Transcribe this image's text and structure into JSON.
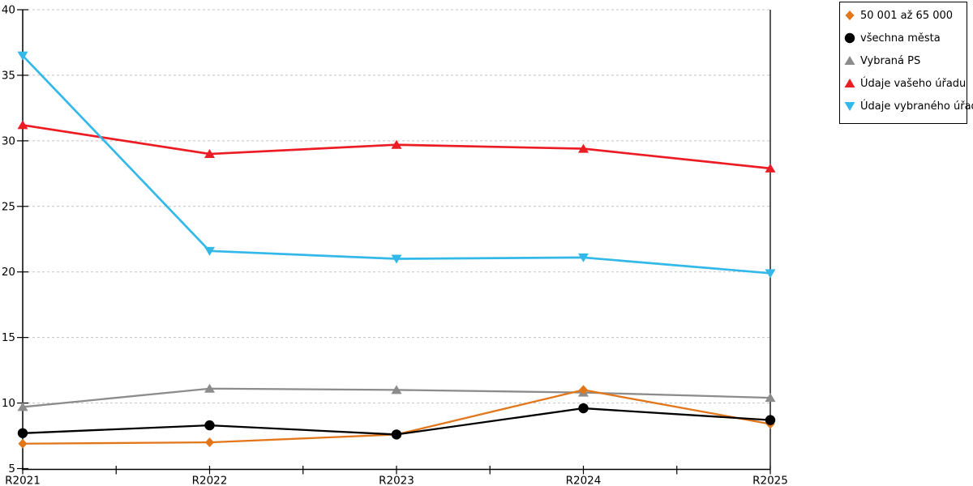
{
  "chart_data": {
    "type": "line",
    "title": "",
    "xlabel": "",
    "ylabel": "",
    "categories": [
      "R2021",
      "R2022",
      "R2023",
      "R2024",
      "R2025"
    ],
    "series": [
      {
        "name": "50 001 až 65 000",
        "marker": "diamond",
        "color": "#E2761B",
        "line_width": 2.3,
        "values": [
          6.9,
          7.0,
          7.6,
          11.0,
          8.4
        ]
      },
      {
        "name": "všechna města",
        "marker": "circle",
        "color": "#000000",
        "line_width": 2.3,
        "values": [
          7.7,
          8.3,
          7.6,
          9.6,
          8.7
        ]
      },
      {
        "name": "Vybraná PS",
        "marker": "triangle-up",
        "color": "#8C8C8C",
        "line_width": 2.3,
        "values": [
          9.7,
          11.1,
          11.0,
          10.8,
          10.4
        ]
      },
      {
        "name": "Údaje vašeho úřadu",
        "marker": "triangle-up",
        "color": "#EC1C24",
        "line_width": 2.7,
        "values": [
          31.2,
          29.0,
          29.7,
          29.4,
          27.9
        ]
      },
      {
        "name": "Údaje vybraného úřadu",
        "marker": "triangle-down",
        "color": "#33B8EA",
        "line_width": 2.7,
        "values": [
          36.5,
          21.6,
          21.0,
          21.1,
          19.9
        ]
      }
    ],
    "ylim": [
      5,
      40
    ],
    "yticks": [
      5,
      10,
      15,
      20,
      25,
      30,
      35,
      40
    ],
    "grid": "horizontal-dashed",
    "gridline_color": "#C0C0C0",
    "axis_color": "#000000",
    "legend_position": "outside-top-right"
  }
}
